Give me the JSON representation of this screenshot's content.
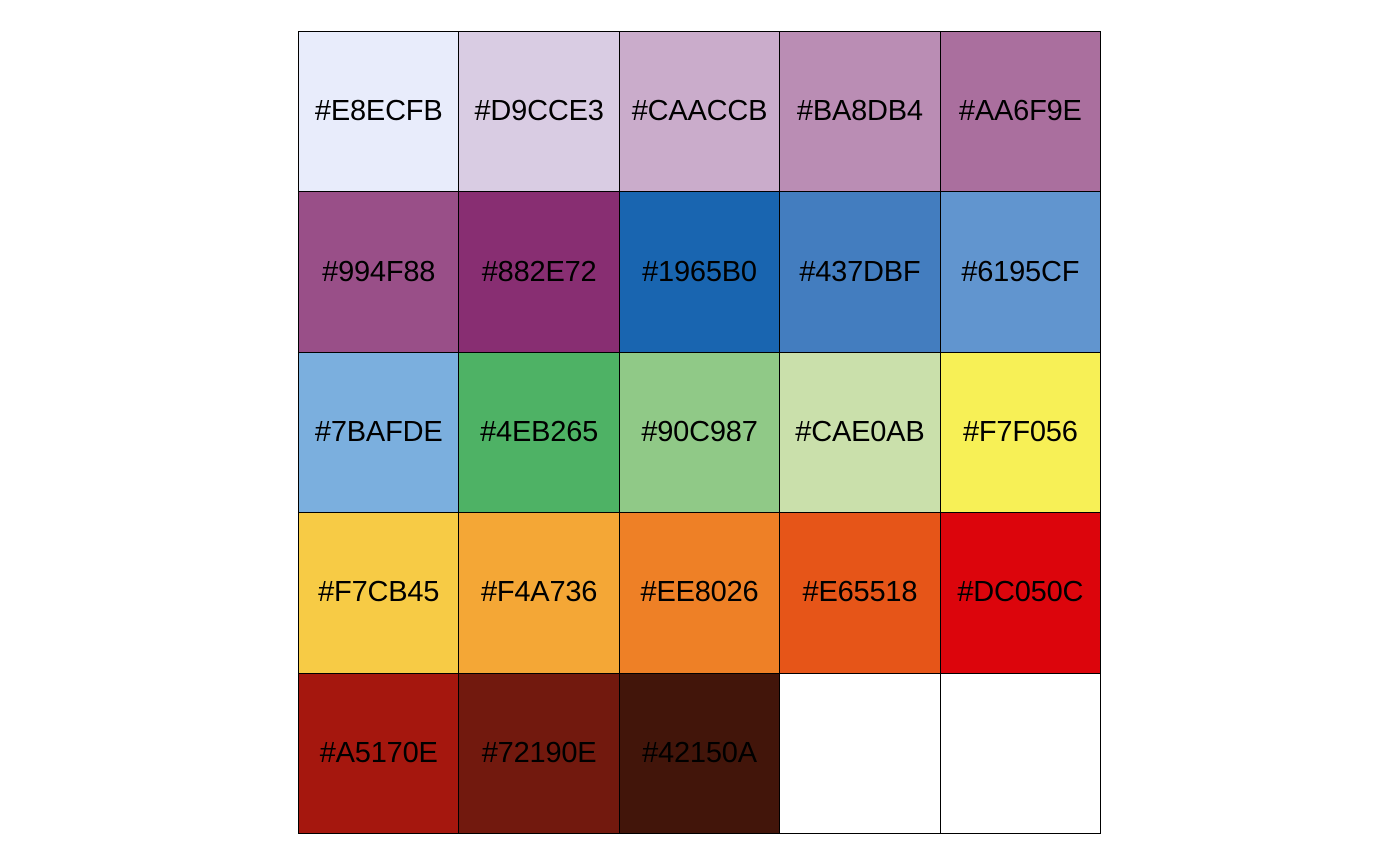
{
  "chart_data": {
    "type": "table",
    "rows": 5,
    "columns": 5,
    "swatches": [
      {
        "label": "#E8ECFB",
        "color": "#E8ECFB"
      },
      {
        "label": "#D9CCE3",
        "color": "#D9CCE3"
      },
      {
        "label": "#CAACCB",
        "color": "#CAACCB"
      },
      {
        "label": "#BA8DB4",
        "color": "#BA8DB4"
      },
      {
        "label": "#AA6F9E",
        "color": "#AA6F9E"
      },
      {
        "label": "#994F88",
        "color": "#994F88"
      },
      {
        "label": "#882E72",
        "color": "#882E72"
      },
      {
        "label": "#1965B0",
        "color": "#1965B0"
      },
      {
        "label": "#437DBF",
        "color": "#437DBF"
      },
      {
        "label": "#6195CF",
        "color": "#6195CF"
      },
      {
        "label": "#7BAFDE",
        "color": "#7BAFDE"
      },
      {
        "label": "#4EB265",
        "color": "#4EB265"
      },
      {
        "label": "#90C987",
        "color": "#90C987"
      },
      {
        "label": "#CAE0AB",
        "color": "#CAE0AB"
      },
      {
        "label": "#F7F056",
        "color": "#F7F056"
      },
      {
        "label": "#F7CB45",
        "color": "#F7CB45"
      },
      {
        "label": "#F4A736",
        "color": "#F4A736"
      },
      {
        "label": "#EE8026",
        "color": "#EE8026"
      },
      {
        "label": "#E65518",
        "color": "#E65518"
      },
      {
        "label": "#DC050C",
        "color": "#DC050C"
      },
      {
        "label": "#A5170E",
        "color": "#A5170E"
      },
      {
        "label": "#72190E",
        "color": "#72190E"
      },
      {
        "label": "#42150A",
        "color": "#42150A"
      },
      {
        "label": "",
        "color": "#FFFFFF"
      },
      {
        "label": "",
        "color": "#FFFFFF"
      }
    ]
  }
}
